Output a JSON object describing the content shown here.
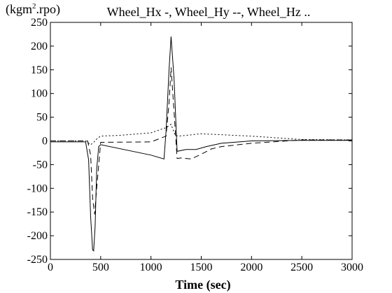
{
  "chart_data": {
    "type": "line",
    "title": "Wheel_Hx -, Wheel_Hy --, Wheel_Hz ..",
    "xlabel": "Time (sec)",
    "ylabel": "(kgm2.rpo)",
    "ylabel_base": "(kgm",
    "ylabel_sup": "2",
    "ylabel_rest": ".rpo)",
    "xlim": [
      0,
      3000
    ],
    "ylim": [
      -250,
      250
    ],
    "xticks": [
      0,
      500,
      1000,
      1500,
      2000,
      2500,
      3000
    ],
    "yticks": [
      250,
      200,
      150,
      100,
      50,
      0,
      -50,
      -100,
      -150,
      -200,
      -250
    ],
    "grid": false,
    "series": [
      {
        "name": "Wheel_Hx",
        "style": "solid",
        "x": [
          0,
          350,
          380,
          400,
          420,
          430,
          445,
          460,
          480,
          500,
          1000,
          1130,
          1150,
          1180,
          1200,
          1230,
          1260,
          1350,
          1450,
          1550,
          1700,
          2000,
          2500,
          3000
        ],
        "y": [
          -2,
          -2,
          -40,
          -160,
          -230,
          -232,
          -180,
          -60,
          -12,
          -8,
          -30,
          -38,
          20,
          150,
          220,
          130,
          -22,
          -18,
          -18,
          -12,
          -5,
          0,
          1,
          1
        ]
      },
      {
        "name": "Wheel_Hy",
        "style": "dashed",
        "x": [
          0,
          370,
          400,
          420,
          440,
          460,
          500,
          1000,
          1150,
          1180,
          1200,
          1230,
          1260,
          1300,
          1400,
          1500,
          1600,
          1700,
          2000,
          2500,
          3000
        ],
        "y": [
          0,
          0,
          -30,
          -120,
          -155,
          -100,
          -3,
          -2,
          10,
          80,
          155,
          60,
          -37,
          -36,
          -38,
          -28,
          -17,
          -12,
          -5,
          2,
          2
        ]
      },
      {
        "name": "Wheel_Hz",
        "style": "dotted",
        "x": [
          0,
          350,
          400,
          430,
          470,
          500,
          700,
          1000,
          1150,
          1200,
          1240,
          1270,
          1500,
          2000,
          2500,
          3000
        ],
        "y": [
          0,
          0,
          -8,
          -3,
          6,
          10,
          12,
          17,
          28,
          35,
          12,
          10,
          15,
          10,
          3,
          2
        ]
      }
    ]
  }
}
